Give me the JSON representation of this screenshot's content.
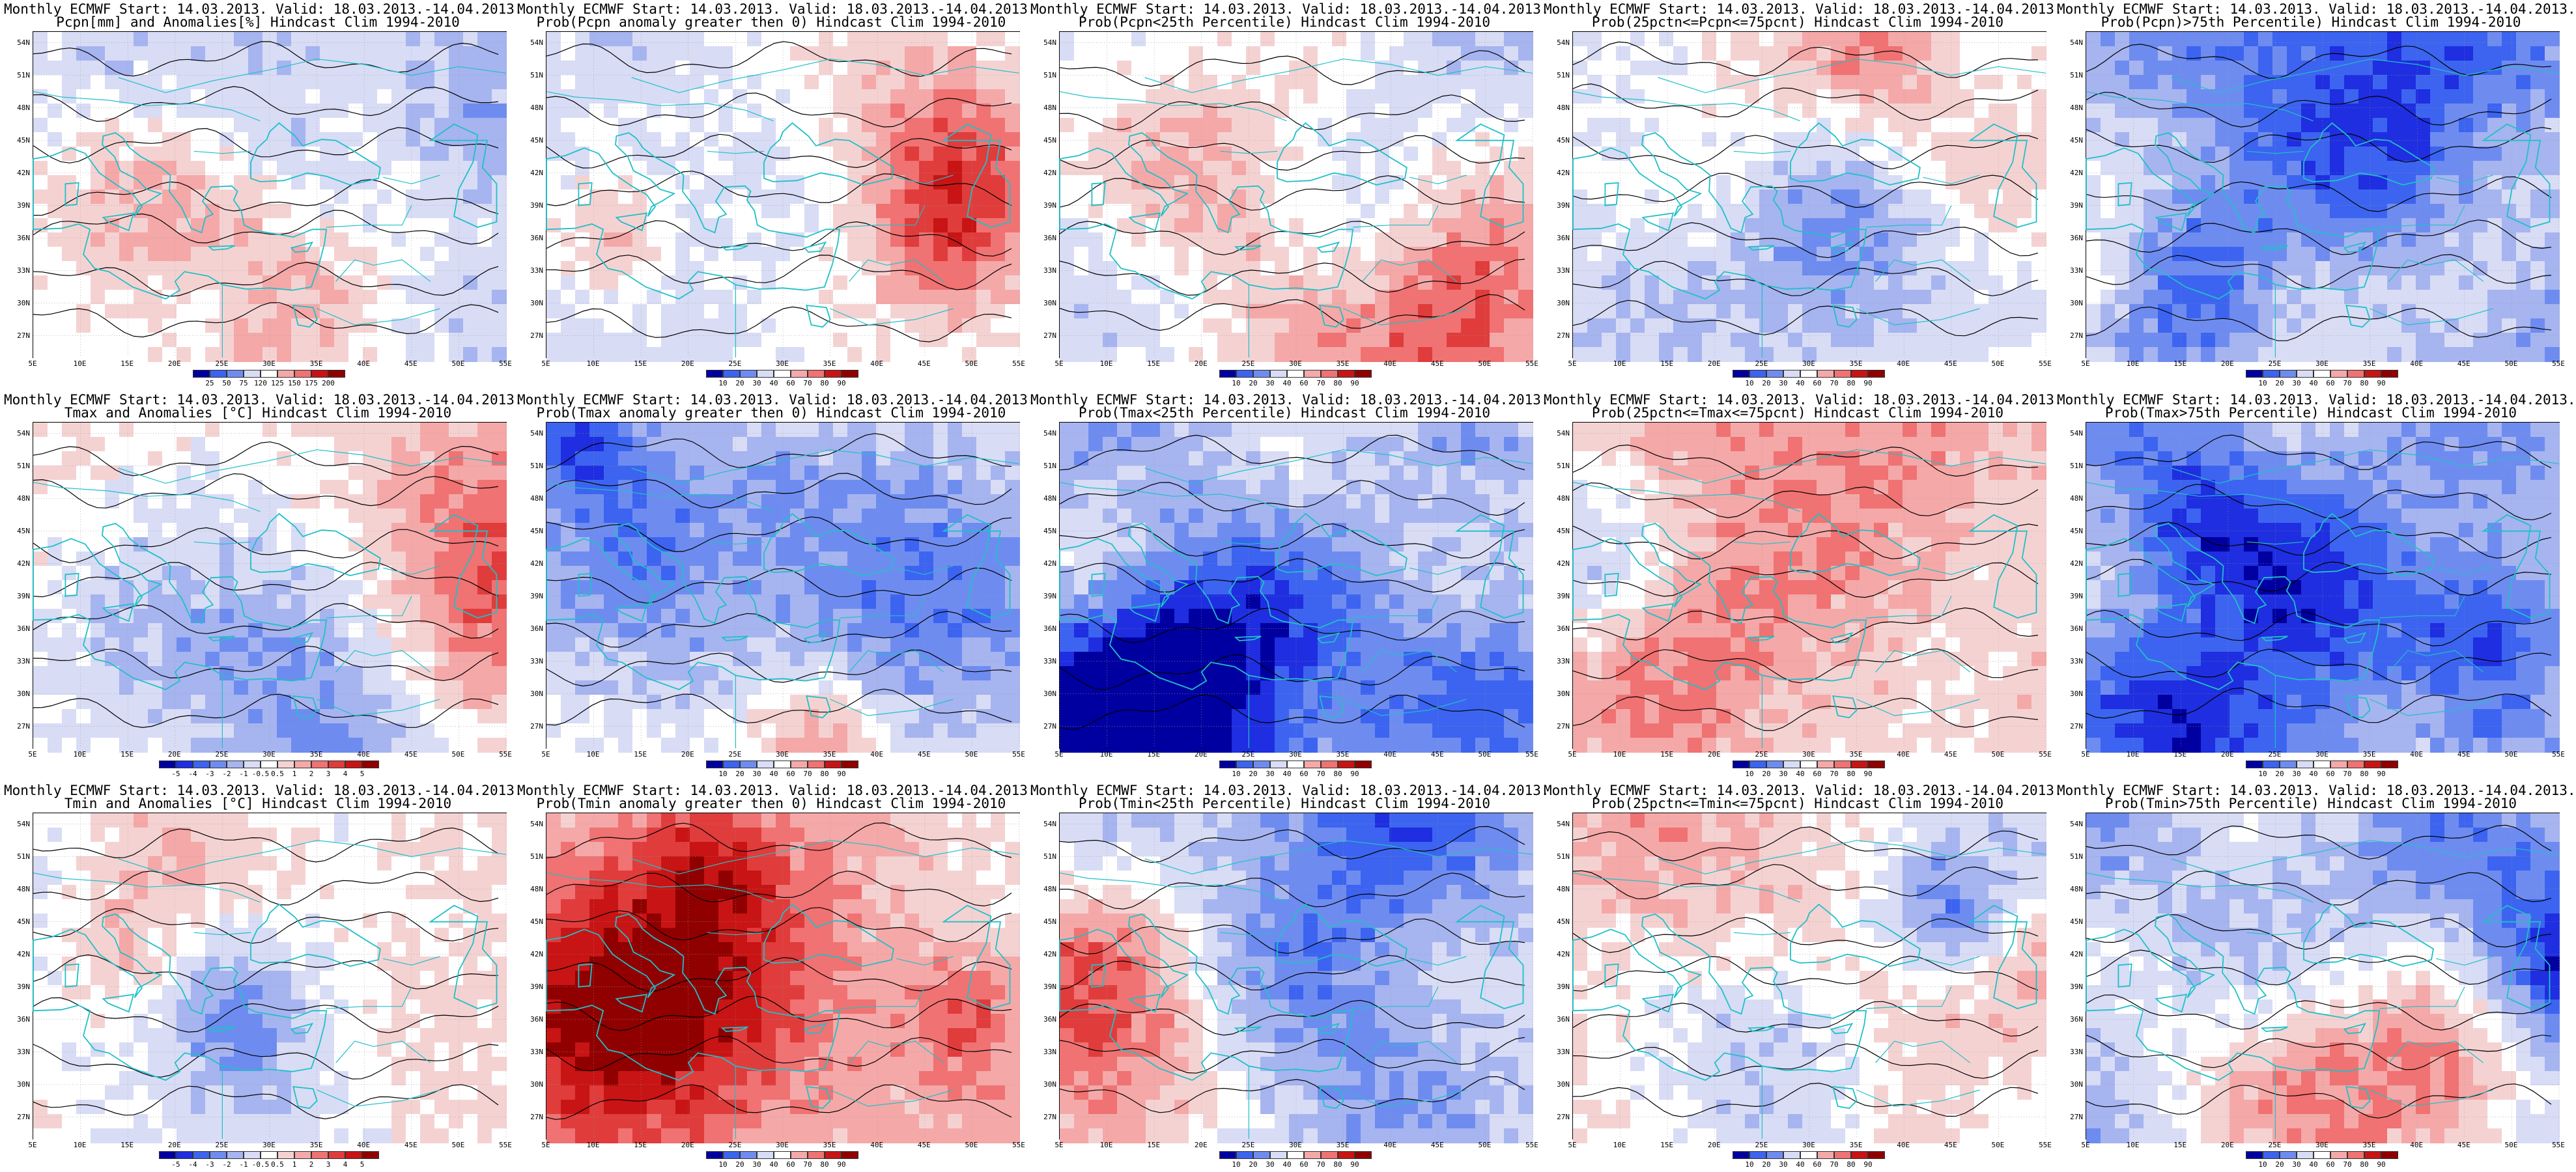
{
  "map_extent": {
    "lon_min": 5,
    "lon_max": 55,
    "lat_min": 25,
    "lat_max": 55
  },
  "lon_ticks": [
    "5E",
    "10E",
    "15E",
    "20E",
    "25E",
    "30E",
    "35E",
    "40E",
    "45E",
    "50E",
    "55E"
  ],
  "lat_ticks": [
    "54N",
    "51N",
    "48N",
    "45N",
    "42N",
    "39N",
    "36N",
    "33N",
    "30N",
    "27N"
  ],
  "colors": {
    "coast": "#20c0c8",
    "contour": "#000000",
    "diverging": [
      "#0000a0",
      "#1e2ee0",
      "#3c64f0",
      "#6e8cf0",
      "#a6b4f0",
      "#d8dcf5",
      "#ffffff",
      "#f5d2d2",
      "#f5a8a8",
      "#f07272",
      "#e03c3c",
      "#c81414",
      "#900000"
    ]
  },
  "panels": [
    {
      "name": "pcpn-anomaly",
      "title1": "Monthly ECMWF Start: 14.03.2013. Valid: 18.03.2013.-14.04.2013.",
      "title2": "Pcpn[mm] and Anomalies[%] Hindcast Clim 1994-2010",
      "bias": -0.9,
      "seed": 11,
      "colorbar": [
        "25",
        "50",
        "75",
        "120",
        "125",
        "150",
        "175",
        "200"
      ]
    },
    {
      "name": "pcpn-prob-gt0",
      "title1": "Monthly ECMWF Start: 14.03.2013. Valid: 18.03.2013.-14.04.2013.",
      "title2": "Prob(Pcpn anomaly greater then 0) Hindcast Clim 1994-2010",
      "bias": -0.7,
      "seed": 23,
      "colorbar": [
        "10",
        "20",
        "30",
        "40",
        "60",
        "70",
        "80",
        "90"
      ]
    },
    {
      "name": "pcpn-prob-lt25",
      "title1": "Monthly ECMWF Start: 14.03.2013. Valid: 18.03.2013.-14.04.2013.",
      "title2": "Prob(Pcpn<25th Percentile) Hindcast Clim 1994-2010",
      "bias": -1.2,
      "seed": 37,
      "colorbar": [
        "10",
        "20",
        "30",
        "40",
        "60",
        "70",
        "80",
        "90"
      ]
    },
    {
      "name": "pcpn-prob-25-75",
      "title1": "Monthly ECMWF Start: 14.03.2013. Valid: 18.03.2013.-14.04.2013.",
      "title2": "Prob(25pctn<=Pcpn<=75pcnt) Hindcast Clim 1994-2010",
      "bias": -0.5,
      "seed": 41,
      "colorbar": [
        "10",
        "20",
        "30",
        "40",
        "60",
        "70",
        "80",
        "90"
      ]
    },
    {
      "name": "pcpn-prob-gt75",
      "title1": "Monthly ECMWF Start: 14.03.2013. Valid: 18.03.2013.-14.04.2013.",
      "title2": "Prob(Pcpn)>75th Percentile) Hindcast Clim 1994-2010",
      "bias": -1.5,
      "seed": 53,
      "colorbar": [
        "10",
        "20",
        "30",
        "40",
        "60",
        "70",
        "80",
        "90"
      ]
    },
    {
      "name": "tmax-anomaly",
      "title1": "Monthly ECMWF Start: 14.03.2013. Valid: 18.03.2013.-14.04.2013.",
      "title2": "Tmax and Anomalies [°C] Hindcast Clim 1994-2010",
      "bias": 0.0,
      "seed": 61,
      "colorbar": [
        "-5",
        "-4",
        "-3",
        "-2",
        "-1",
        "-0.5",
        "0.5",
        "1",
        "2",
        "3",
        "4",
        "5"
      ]
    },
    {
      "name": "tmax-prob-gt0",
      "title1": "Monthly ECMWF Start: 14.03.2013. Valid: 18.03.2013.-14.04.2013.",
      "title2": "Prob(Tmax anomaly greater then 0) Hindcast Clim 1994-2010",
      "bias": 0.2,
      "seed": 71,
      "colorbar": [
        "10",
        "20",
        "30",
        "40",
        "60",
        "70",
        "80",
        "90"
      ]
    },
    {
      "name": "tmax-prob-lt25",
      "title1": "Monthly ECMWF Start: 14.03.2013. Valid: 18.03.2013.-14.04.2013.",
      "title2": "Prob(Tmax<25th Percentile) Hindcast Clim 1994-2010",
      "bias": -1.4,
      "seed": 83,
      "colorbar": [
        "10",
        "20",
        "30",
        "40",
        "60",
        "70",
        "80",
        "90"
      ]
    },
    {
      "name": "tmax-prob-25-75",
      "title1": "Monthly ECMWF Start: 14.03.2013. Valid: 18.03.2013.-14.04.2013.",
      "title2": "Prob(25pctn<=Tmax<=75pcnt) Hindcast Clim 1994-2010",
      "bias": 0.7,
      "seed": 97,
      "colorbar": [
        "10",
        "20",
        "30",
        "40",
        "60",
        "70",
        "80",
        "90"
      ]
    },
    {
      "name": "tmax-prob-gt75",
      "title1": "Monthly ECMWF Start: 14.03.2013. Valid: 18.03.2013.-14.04.2013.",
      "title2": "Prob(Tmax>75th Percentile) Hindcast Clim 1994-2010",
      "bias": -1.7,
      "seed": 101,
      "colorbar": [
        "10",
        "20",
        "30",
        "40",
        "60",
        "70",
        "80",
        "90"
      ]
    },
    {
      "name": "tmin-anomaly",
      "title1": "Monthly ECMWF Start: 14.03.2013. Valid: 18.03.2013.-14.04.2013.",
      "title2": "Tmin and Anomalies [°C] Hindcast Clim 1994-2010",
      "bias": 0.1,
      "seed": 113,
      "colorbar": [
        "-5",
        "-4",
        "-3",
        "-2",
        "-1",
        "-0.5",
        "0.5",
        "1",
        "2",
        "3",
        "4",
        "5"
      ]
    },
    {
      "name": "tmin-prob-gt0",
      "title1": "Monthly ECMWF Start: 14.03.2013. Valid: 18.03.2013.-14.04.2013.",
      "title2": "Prob(Tmin anomaly greater then 0) Hindcast Clim 1994-2010",
      "bias": 0.4,
      "seed": 127,
      "colorbar": [
        "10",
        "20",
        "30",
        "40",
        "60",
        "70",
        "80",
        "90"
      ]
    },
    {
      "name": "tmin-prob-lt25",
      "title1": "Monthly ECMWF Start: 14.03.2013. Valid: 18.03.2013.-14.04.2013.",
      "title2": "Prob(Tmin<25th Percentile) Hindcast Clim 1994-2010",
      "bias": -1.3,
      "seed": 131,
      "colorbar": [
        "10",
        "20",
        "30",
        "40",
        "60",
        "70",
        "80",
        "90"
      ]
    },
    {
      "name": "tmin-prob-25-75",
      "title1": "Monthly ECMWF Start: 14.03.2013. Valid: 18.03.2013.-14.04.2013.",
      "title2": "Prob(25pctn<=Tmin<=75pcnt) Hindcast Clim 1994-2010",
      "bias": 0.6,
      "seed": 149,
      "colorbar": [
        "10",
        "20",
        "30",
        "40",
        "60",
        "70",
        "80",
        "90"
      ]
    },
    {
      "name": "tmin-prob-gt75",
      "title1": "Monthly ECMWF Start: 14.03.2013. Valid: 18.03.2013.-14.04.2013.",
      "title2": "Prob(Tmin>75th Percentile) Hindcast Clim 1994-2010",
      "bias": -1.6,
      "seed": 157,
      "colorbar": [
        "10",
        "20",
        "30",
        "40",
        "60",
        "70",
        "80",
        "90"
      ]
    }
  ]
}
